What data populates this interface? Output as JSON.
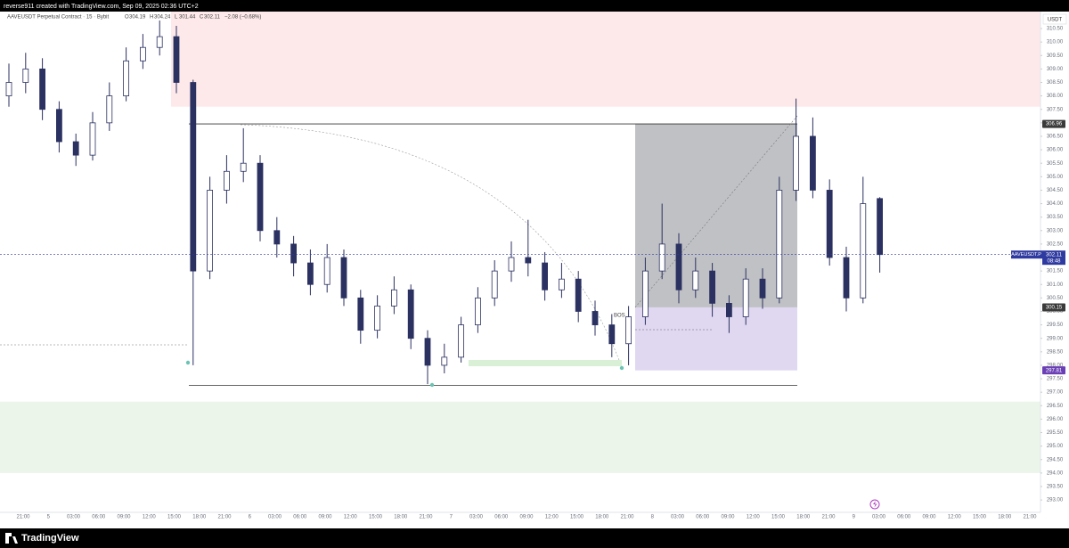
{
  "header": {
    "title": "reverse911 created with TradingView.com, Sep 09, 2025 02:36 UTC+2"
  },
  "legend": {
    "symbol": "AAVEUSDT Perpetual Contract · 15 · Bybit",
    "items": [
      {
        "key": "O",
        "value": "304.19"
      },
      {
        "key": "H",
        "value": "304.24"
      },
      {
        "key": "L",
        "value": "301.44"
      },
      {
        "key": "C",
        "value": "302.11"
      }
    ],
    "change": "−2.08 (−0.68%)"
  },
  "chart_data": {
    "type": "candlestick",
    "currency": "USDT",
    "color": "#2b3160",
    "ylim": [
      292.54,
      311.13
    ],
    "yticks": [
      {
        "value": 293,
        "label": "293.00"
      },
      {
        "value": 293.5,
        "label": "293.50"
      },
      {
        "value": 294,
        "label": "294.00"
      },
      {
        "value": 294.5,
        "label": "294.50"
      },
      {
        "value": 295,
        "label": "295.00"
      },
      {
        "value": 295.5,
        "label": "295.50"
      },
      {
        "value": 296,
        "label": "296.00"
      },
      {
        "value": 296.5,
        "label": "296.50"
      },
      {
        "value": 297,
        "label": "297.00"
      },
      {
        "value": 297.5,
        "label": "297.50"
      },
      {
        "value": 298,
        "label": "298.00"
      },
      {
        "value": 298.5,
        "label": "298.50"
      },
      {
        "value": 299,
        "label": "299.00"
      },
      {
        "value": 299.5,
        "label": "299.50"
      },
      {
        "value": 300,
        "label": "300.00"
      },
      {
        "value": 300.5,
        "label": "300.50"
      },
      {
        "value": 301,
        "label": "301.00"
      },
      {
        "value": 301.5,
        "label": "301.50"
      },
      {
        "value": 302,
        "label": "302.00"
      },
      {
        "value": 302.5,
        "label": "302.50"
      },
      {
        "value": 303,
        "label": "303.00"
      },
      {
        "value": 303.5,
        "label": "303.50"
      },
      {
        "value": 304,
        "label": "304.00"
      },
      {
        "value": 304.5,
        "label": "304.50"
      },
      {
        "value": 305,
        "label": "305.00"
      },
      {
        "value": 305.5,
        "label": "305.50"
      },
      {
        "value": 306,
        "label": "306.00"
      },
      {
        "value": 306.5,
        "label": "306.50"
      },
      {
        "value": 307,
        "label": "307.00"
      },
      {
        "value": 307.5,
        "label": "307.50"
      },
      {
        "value": 308,
        "label": "308.00"
      },
      {
        "value": 308.5,
        "label": "308.50"
      },
      {
        "value": 309,
        "label": "309.00"
      },
      {
        "value": 309.5,
        "label": "309.50"
      },
      {
        "value": 310,
        "label": "310.00"
      },
      {
        "value": 310.5,
        "label": "310.50"
      }
    ],
    "x_labels": [
      "21:00",
      "5",
      "03:00",
      "06:00",
      "09:00",
      "12:00",
      "15:00",
      "18:00",
      "21:00",
      "6",
      "03:00",
      "06:00",
      "09:00",
      "12:00",
      "15:00",
      "18:00",
      "21:00",
      "7",
      "03:00",
      "06:00",
      "09:00",
      "12:00",
      "15:00",
      "18:00",
      "21:00",
      "8",
      "03:00",
      "06:00",
      "09:00",
      "12:00",
      "15:00",
      "18:00",
      "21:00",
      "9",
      "03:00",
      "06:00",
      "09:00",
      "12:00",
      "15:00",
      "18:00",
      "21:00"
    ],
    "open": [
      308.0,
      308.5,
      309.0,
      307.5,
      306.3,
      305.8,
      307.0,
      308.0,
      309.3,
      309.8,
      310.2,
      308.5,
      301.5,
      304.5,
      305.2,
      305.5,
      303.0,
      302.5,
      301.8,
      301.0,
      302.0,
      300.5,
      299.3,
      300.2,
      300.8,
      299.0,
      298.0,
      298.3,
      299.5,
      300.5,
      301.5,
      302.0,
      301.8,
      300.8,
      301.2,
      300.0,
      299.5,
      298.8,
      299.8,
      301.5,
      302.5,
      300.8,
      301.5,
      300.3,
      299.8,
      301.2,
      300.5,
      304.5,
      306.5,
      304.5,
      302.0,
      300.5,
      304.19
    ],
    "high": [
      309.2,
      309.6,
      309.4,
      307.8,
      306.6,
      307.4,
      308.5,
      309.8,
      310.3,
      310.8,
      310.6,
      308.6,
      305.0,
      305.8,
      306.8,
      305.8,
      303.5,
      302.8,
      302.3,
      302.5,
      302.3,
      300.8,
      300.6,
      301.3,
      301.0,
      299.3,
      298.8,
      299.8,
      300.9,
      301.9,
      302.6,
      303.4,
      302.2,
      301.8,
      301.5,
      300.4,
      299.9,
      300.2,
      302.0,
      304.0,
      302.9,
      302.0,
      301.8,
      300.6,
      301.6,
      301.6,
      305.0,
      307.9,
      307.2,
      304.9,
      302.4,
      305.0,
      304.24
    ],
    "low": [
      307.6,
      308.1,
      307.1,
      305.9,
      305.4,
      305.6,
      306.7,
      307.8,
      309.0,
      309.5,
      308.1,
      298.0,
      301.2,
      304.0,
      304.8,
      302.6,
      302.0,
      301.3,
      300.6,
      300.7,
      300.2,
      298.8,
      299.0,
      299.9,
      298.6,
      297.3,
      297.7,
      298.1,
      299.2,
      300.2,
      301.1,
      301.3,
      300.4,
      300.5,
      299.6,
      299.1,
      298.3,
      298.0,
      299.5,
      301.2,
      300.3,
      300.5,
      299.8,
      299.2,
      299.5,
      300.1,
      300.3,
      304.1,
      304.2,
      301.7,
      300.0,
      300.3,
      301.44
    ],
    "close": [
      308.5,
      309.0,
      307.5,
      306.3,
      305.8,
      307.0,
      308.0,
      309.3,
      309.8,
      310.2,
      308.5,
      301.5,
      304.5,
      305.2,
      305.5,
      303.0,
      302.5,
      301.8,
      301.0,
      302.0,
      300.5,
      299.3,
      300.2,
      300.8,
      299.0,
      298.0,
      298.3,
      299.5,
      300.5,
      301.5,
      302.0,
      301.8,
      300.8,
      301.2,
      300.0,
      299.5,
      298.8,
      299.8,
      301.5,
      302.5,
      300.8,
      301.5,
      300.3,
      299.8,
      301.2,
      300.5,
      304.5,
      306.5,
      304.5,
      302.0,
      300.5,
      304.0,
      302.11
    ],
    "zones": [
      {
        "from": 307.6,
        "to": 311.13,
        "color": "#fde9ea"
      },
      {
        "from": 294.0,
        "to": 296.65,
        "color": "#ebf5e9"
      }
    ],
    "range_lines": [
      306.96,
      297.25
    ],
    "boxes": [
      {
        "from": 300.15,
        "to": 306.96,
        "color": "#b9babf"
      },
      {
        "from": 297.81,
        "to": 300.15,
        "color": "#ddd3f0"
      }
    ],
    "levels": [
      {
        "value": 306.96,
        "label": "306.96",
        "color": "#3a3a3a"
      },
      {
        "value": 300.15,
        "label": "300.15",
        "color": "#3a3a3a"
      },
      {
        "value": 297.81,
        "label": "297.81",
        "color": "#6a3fb5"
      }
    ],
    "last": {
      "value": 302.11,
      "label": "302.11",
      "name": "AAVEUSDT.P",
      "countdown": "08:48",
      "color": "#2f3aa0"
    },
    "bos_label": "BOS"
  },
  "footer": {
    "brand": "TradingView"
  }
}
